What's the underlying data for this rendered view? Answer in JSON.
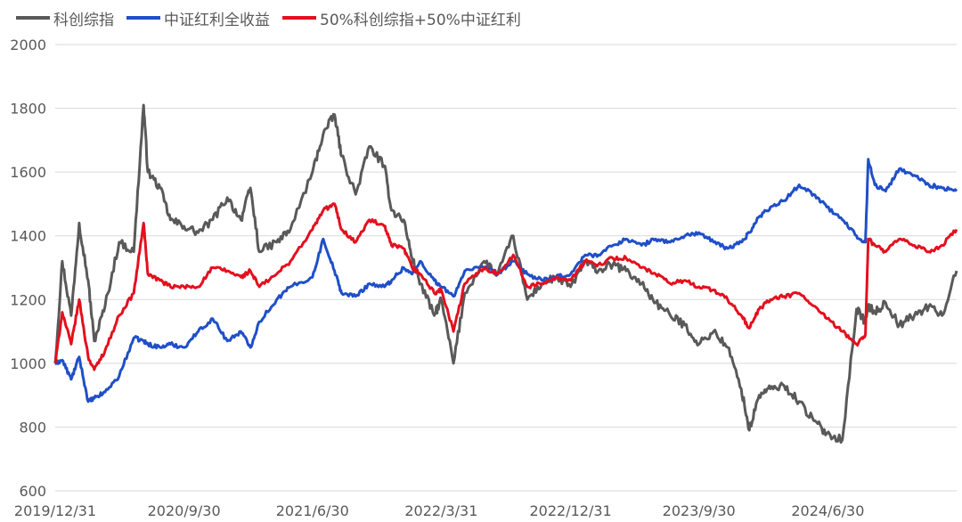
{
  "chart_data": {
    "type": "line",
    "title": "",
    "xlabel": "",
    "ylabel": "",
    "ylim": [
      600,
      2000
    ],
    "yticks": [
      600,
      800,
      1000,
      1200,
      1400,
      1600,
      1800,
      2000
    ],
    "xticks": [
      "2019/12/31",
      "2020/9/30",
      "2021/6/30",
      "2022/3/31",
      "2022/12/31",
      "2023/9/30",
      "2024/6/30"
    ],
    "xlim": [
      "2019/12/31",
      "2025/3/31"
    ],
    "grid": "horizontal",
    "legend_position": "top-left",
    "x": [
      "2019-12-31",
      "2020-01-15",
      "2020-02-03",
      "2020-02-20",
      "2020-03-10",
      "2020-03-23",
      "2020-04-15",
      "2020-05-15",
      "2020-06-15",
      "2020-07-06",
      "2020-07-15",
      "2020-08-10",
      "2020-09-01",
      "2020-09-30",
      "2020-10-30",
      "2020-11-30",
      "2020-12-31",
      "2021-01-29",
      "2021-02-18",
      "2021-03-09",
      "2021-04-15",
      "2021-05-14",
      "2021-06-30",
      "2021-07-23",
      "2021-08-16",
      "2021-08-31",
      "2021-09-30",
      "2021-10-29",
      "2021-11-30",
      "2021-12-15",
      "2022-01-10",
      "2022-01-28",
      "2022-02-15",
      "2022-03-16",
      "2022-03-31",
      "2022-04-26",
      "2022-05-20",
      "2022-06-30",
      "2022-07-29",
      "2022-08-31",
      "2022-09-30",
      "2022-10-31",
      "2022-11-30",
      "2022-12-31",
      "2023-01-31",
      "2023-02-28",
      "2023-03-31",
      "2023-04-28",
      "2023-05-31",
      "2023-06-30",
      "2023-07-31",
      "2023-08-31",
      "2023-09-30",
      "2023-10-31",
      "2023-11-30",
      "2023-12-29",
      "2024-01-15",
      "2024-02-05",
      "2024-02-29",
      "2024-03-29",
      "2024-04-30",
      "2024-05-31",
      "2024-06-28",
      "2024-07-31",
      "2024-08-30",
      "2024-09-18",
      "2024-09-24",
      "2024-10-08",
      "2024-10-31",
      "2024-11-29",
      "2024-12-31",
      "2025-01-31",
      "2025-02-28",
      "2025-03-31"
    ],
    "series": [
      {
        "name": "科创综指",
        "color": "#595959",
        "values": [
          1000,
          1320,
          1150,
          1440,
          1260,
          1070,
          1180,
          1380,
          1350,
          1810,
          1600,
          1550,
          1450,
          1430,
          1410,
          1450,
          1520,
          1450,
          1550,
          1350,
          1380,
          1420,
          1600,
          1720,
          1780,
          1650,
          1530,
          1680,
          1620,
          1480,
          1450,
          1330,
          1250,
          1150,
          1200,
          1000,
          1220,
          1320,
          1280,
          1400,
          1200,
          1250,
          1270,
          1240,
          1320,
          1290,
          1310,
          1290,
          1250,
          1190,
          1150,
          1120,
          1060,
          1100,
          1050,
          920,
          790,
          900,
          920,
          930,
          880,
          820,
          780,
          760,
          1170,
          1130,
          1180,
          1160,
          1190,
          1120,
          1150,
          1180,
          1150,
          1290
        ]
      },
      {
        "name": "中证红利全收益",
        "color": "#1f4fc8",
        "values": [
          1000,
          1010,
          950,
          1020,
          880,
          890,
          910,
          960,
          1080,
          1070,
          1060,
          1050,
          1060,
          1050,
          1100,
          1140,
          1070,
          1100,
          1050,
          1130,
          1200,
          1240,
          1270,
          1390,
          1290,
          1220,
          1210,
          1250,
          1240,
          1260,
          1300,
          1280,
          1320,
          1260,
          1240,
          1210,
          1290,
          1300,
          1280,
          1320,
          1280,
          1260,
          1270,
          1280,
          1340,
          1340,
          1370,
          1390,
          1370,
          1390,
          1380,
          1400,
          1410,
          1380,
          1360,
          1380,
          1410,
          1460,
          1490,
          1510,
          1560,
          1530,
          1490,
          1450,
          1400,
          1380,
          1640,
          1560,
          1540,
          1610,
          1590,
          1560,
          1550,
          1540
        ]
      },
      {
        "name": "50%科创综指+50%中证红利",
        "color": "#e3101e",
        "values": [
          1000,
          1160,
          1060,
          1200,
          1020,
          980,
          1040,
          1150,
          1220,
          1440,
          1280,
          1260,
          1240,
          1240,
          1240,
          1300,
          1290,
          1270,
          1290,
          1240,
          1280,
          1320,
          1420,
          1480,
          1500,
          1420,
          1380,
          1450,
          1430,
          1370,
          1360,
          1300,
          1280,
          1220,
          1230,
          1100,
          1250,
          1300,
          1280,
          1340,
          1240,
          1250,
          1270,
          1260,
          1320,
          1310,
          1330,
          1330,
          1300,
          1280,
          1250,
          1260,
          1240,
          1230,
          1200,
          1150,
          1110,
          1170,
          1200,
          1210,
          1220,
          1180,
          1140,
          1100,
          1060,
          1090,
          1390,
          1370,
          1350,
          1390,
          1370,
          1350,
          1370,
          1420
        ]
      }
    ]
  }
}
